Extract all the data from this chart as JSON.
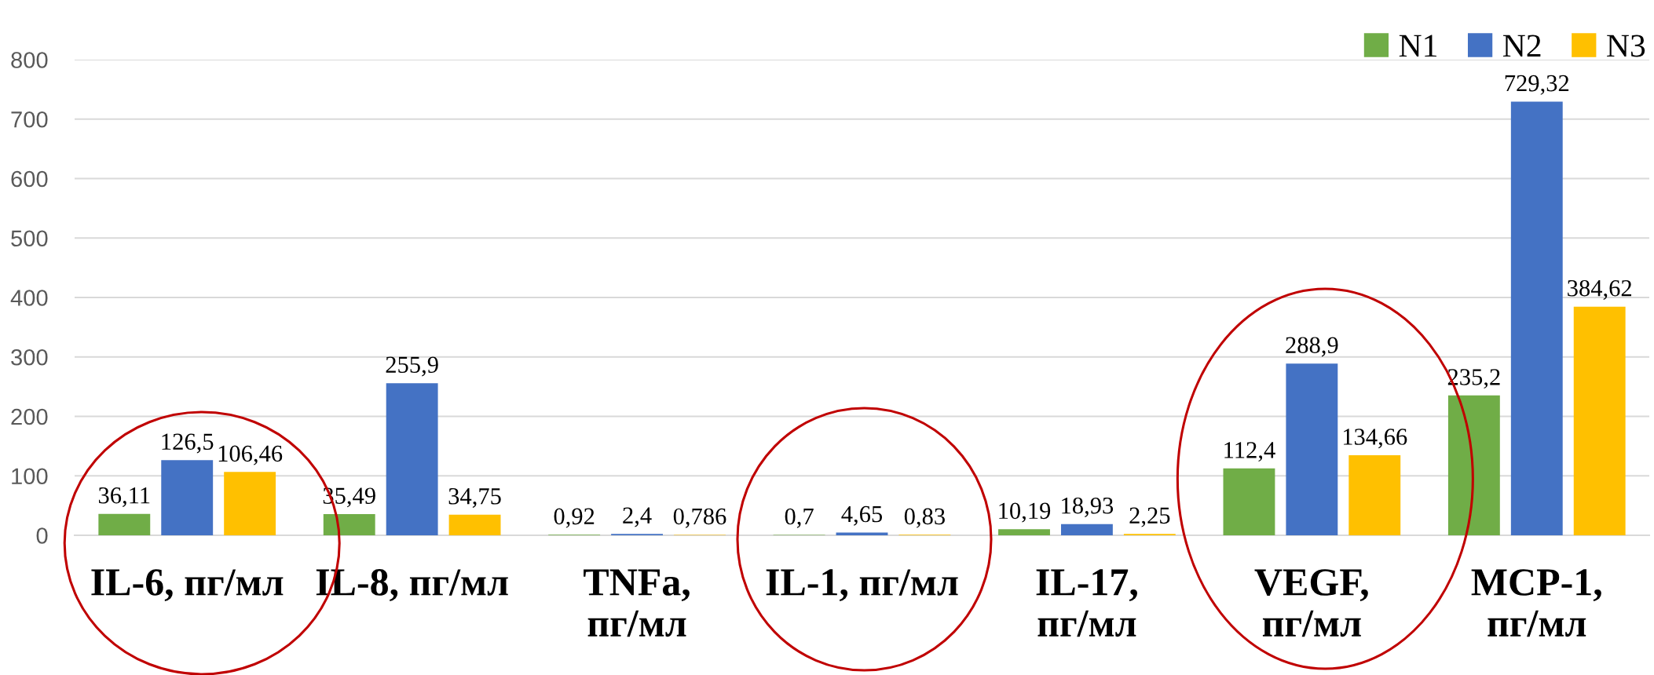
{
  "chart_data": {
    "type": "bar",
    "categories": [
      "IL-6, пг/мл",
      "IL-8, пг/мл",
      "TNFa,\nпг/мл",
      "IL-1, пг/мл",
      "IL-17,\nпг/мл",
      "VEGF,\nпг/мл",
      "MCP-1,\nпг/мл"
    ],
    "series": [
      {
        "name": "N1",
        "color": "#70ad47",
        "values": [
          36.11,
          35.49,
          0.92,
          0.7,
          10.19,
          112.4,
          235.2
        ],
        "value_labels": [
          "36,11",
          "35,49",
          "0,92",
          "0,7",
          "10,19",
          "112,4",
          "235,2"
        ]
      },
      {
        "name": "N2",
        "color": "#4472c4",
        "values": [
          126.5,
          255.9,
          2.4,
          4.65,
          18.93,
          288.9,
          729.32
        ],
        "value_labels": [
          "126,5",
          "255,9",
          "2,4",
          "4,65",
          "18,93",
          "288,9",
          "729,32"
        ]
      },
      {
        "name": "N3",
        "color": "#ffc000",
        "values": [
          106.46,
          34.75,
          0.786,
          0.83,
          2.25,
          134.66,
          384.62
        ],
        "value_labels": [
          "106,46",
          "34,75",
          "0,786",
          "0,83",
          "2,25",
          "134,66",
          "384,62"
        ]
      }
    ],
    "ylim": [
      0,
      800
    ],
    "yticks": [
      0,
      100,
      200,
      300,
      400,
      500,
      600,
      700,
      800
    ],
    "grid": "y",
    "legend": "top right"
  }
}
